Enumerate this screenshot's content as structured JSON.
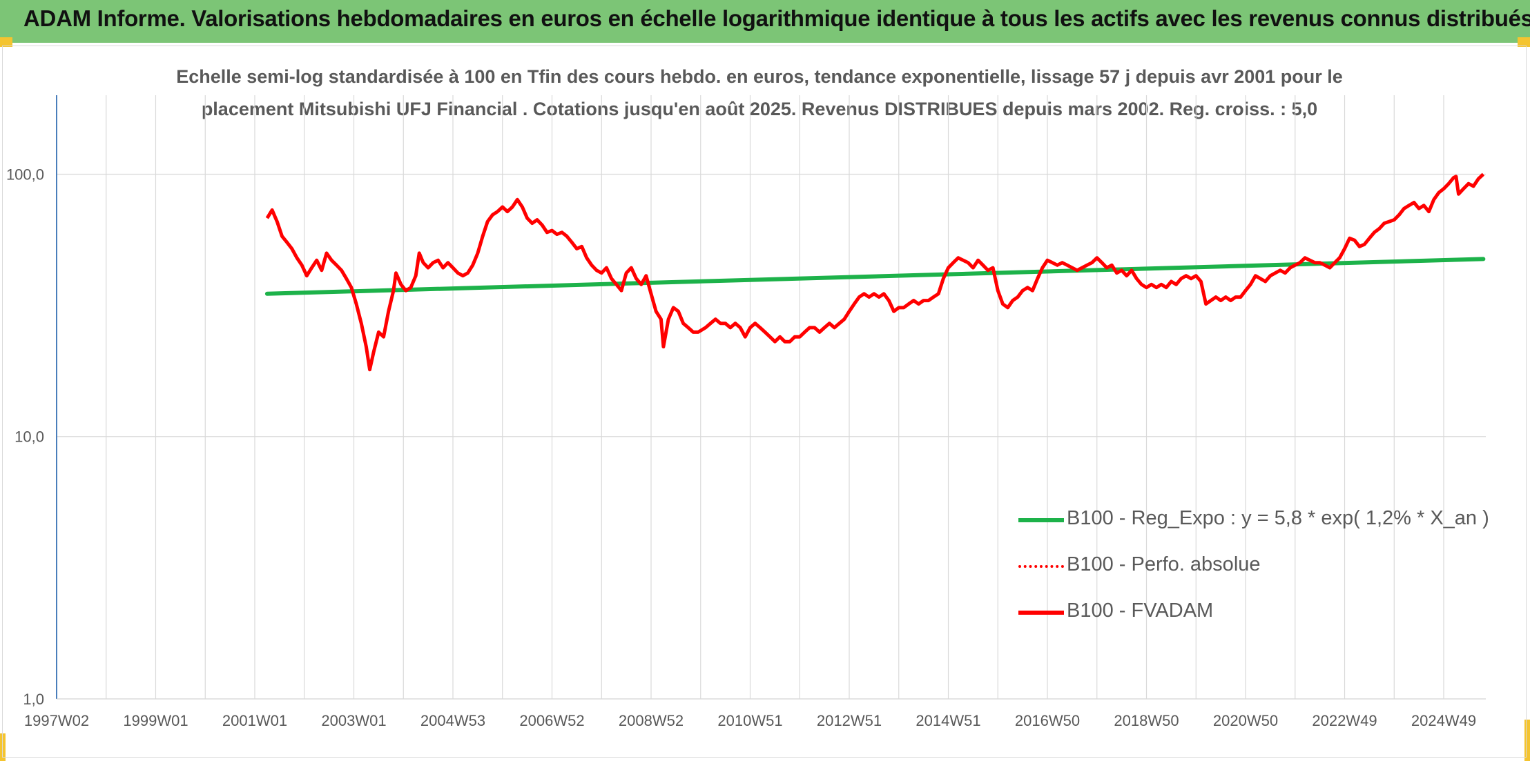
{
  "header": {
    "title": "ADAM Informe. Valorisations hebdomadaires en euros en échelle logarithmique identique à tous les actifs avec les revenus connus distribués"
  },
  "colors": {
    "header_bg": "#7cc576",
    "series_fvadam": "#ff0000",
    "series_regexpo": "#1db24a",
    "series_perfo": "#ff0000",
    "grid": "#d9d9d9",
    "axis": "#4a7ebb",
    "text": "#595959"
  },
  "chart_data": {
    "type": "line",
    "title_line1": "Echelle semi-log standardisée à 100 en Tfin des cours hebdo. en euros, tendance exponentielle, lissage 57 j depuis avr 2001 pour le",
    "title_line2": "placement Mitsubishi UFJ Financial . Cotations jusqu'en août 2025. Revenus DISTRIBUES depuis mars 2002. Reg. croiss. : 5,0",
    "y_scale": "log",
    "ylim": [
      1,
      200
    ],
    "y_ticks": [
      {
        "value": 1,
        "label": "1,0"
      },
      {
        "value": 10,
        "label": "10,0"
      },
      {
        "value": 100,
        "label": "100,0"
      }
    ],
    "xlim": [
      1997.0,
      2025.85
    ],
    "x_ticks": [
      {
        "value": 1997.0,
        "label": "1997W02"
      },
      {
        "value": 1999.0,
        "label": "1999W01"
      },
      {
        "value": 2001.0,
        "label": "2001W01"
      },
      {
        "value": 2003.0,
        "label": "2003W01"
      },
      {
        "value": 2005.0,
        "label": "2004W53"
      },
      {
        "value": 2007.0,
        "label": "2006W52"
      },
      {
        "value": 2009.0,
        "label": "2008W52"
      },
      {
        "value": 2011.0,
        "label": "2010W51"
      },
      {
        "value": 2013.0,
        "label": "2012W51"
      },
      {
        "value": 2015.0,
        "label": "2014W51"
      },
      {
        "value": 2017.0,
        "label": "2016W50"
      },
      {
        "value": 2019.0,
        "label": "2018W50"
      },
      {
        "value": 2021.0,
        "label": "2020W50"
      },
      {
        "value": 2023.0,
        "label": "2022W49"
      },
      {
        "value": 2025.0,
        "label": "2024W49"
      }
    ],
    "grid": true,
    "legend_position": "bottom-right",
    "series": [
      {
        "name": "B100 - Reg_Expo : y = 5,8 * exp( 1,2% *  X_an )",
        "style": "solid",
        "points": [
          [
            2001.25,
            35.0
          ],
          [
            2025.8,
            47.5
          ]
        ]
      },
      {
        "name": "B100 - Perfo. absolue",
        "style": "dotted",
        "points": []
      },
      {
        "name": "B100 - FVADAM",
        "style": "solid",
        "points": [
          [
            2001.25,
            68
          ],
          [
            2001.35,
            73
          ],
          [
            2001.45,
            66
          ],
          [
            2001.55,
            58
          ],
          [
            2001.65,
            55
          ],
          [
            2001.75,
            52
          ],
          [
            2001.85,
            48
          ],
          [
            2001.95,
            45
          ],
          [
            2002.05,
            41
          ],
          [
            2002.15,
            44
          ],
          [
            2002.25,
            47
          ],
          [
            2002.35,
            43
          ],
          [
            2002.45,
            50
          ],
          [
            2002.55,
            47
          ],
          [
            2002.65,
            45
          ],
          [
            2002.75,
            43
          ],
          [
            2002.85,
            40
          ],
          [
            2002.95,
            37
          ],
          [
            2003.05,
            32
          ],
          [
            2003.15,
            27
          ],
          [
            2003.25,
            22
          ],
          [
            2003.32,
            18
          ],
          [
            2003.4,
            21
          ],
          [
            2003.5,
            25
          ],
          [
            2003.6,
            24
          ],
          [
            2003.7,
            30
          ],
          [
            2003.8,
            36
          ],
          [
            2003.85,
            42
          ],
          [
            2003.95,
            38
          ],
          [
            2004.05,
            36
          ],
          [
            2004.15,
            37
          ],
          [
            2004.25,
            41
          ],
          [
            2004.32,
            50
          ],
          [
            2004.4,
            46
          ],
          [
            2004.5,
            44
          ],
          [
            2004.6,
            46
          ],
          [
            2004.7,
            47
          ],
          [
            2004.8,
            44
          ],
          [
            2004.9,
            46
          ],
          [
            2005.0,
            44
          ],
          [
            2005.1,
            42
          ],
          [
            2005.2,
            41
          ],
          [
            2005.3,
            42
          ],
          [
            2005.4,
            45
          ],
          [
            2005.5,
            50
          ],
          [
            2005.6,
            58
          ],
          [
            2005.7,
            66
          ],
          [
            2005.8,
            70
          ],
          [
            2005.9,
            72
          ],
          [
            2006.0,
            75
          ],
          [
            2006.1,
            72
          ],
          [
            2006.2,
            75
          ],
          [
            2006.3,
            80
          ],
          [
            2006.4,
            75
          ],
          [
            2006.5,
            68
          ],
          [
            2006.6,
            65
          ],
          [
            2006.7,
            67
          ],
          [
            2006.8,
            64
          ],
          [
            2006.9,
            60
          ],
          [
            2007.0,
            61
          ],
          [
            2007.1,
            59
          ],
          [
            2007.2,
            60
          ],
          [
            2007.3,
            58
          ],
          [
            2007.4,
            55
          ],
          [
            2007.5,
            52
          ],
          [
            2007.6,
            53
          ],
          [
            2007.7,
            48
          ],
          [
            2007.8,
            45
          ],
          [
            2007.9,
            43
          ],
          [
            2008.0,
            42
          ],
          [
            2008.1,
            44
          ],
          [
            2008.2,
            40
          ],
          [
            2008.3,
            38
          ],
          [
            2008.4,
            36
          ],
          [
            2008.5,
            42
          ],
          [
            2008.6,
            44
          ],
          [
            2008.7,
            40
          ],
          [
            2008.8,
            38
          ],
          [
            2008.9,
            41
          ],
          [
            2009.0,
            35
          ],
          [
            2009.1,
            30
          ],
          [
            2009.2,
            28
          ],
          [
            2009.25,
            22
          ],
          [
            2009.35,
            28
          ],
          [
            2009.45,
            31
          ],
          [
            2009.55,
            30
          ],
          [
            2009.65,
            27
          ],
          [
            2009.75,
            26
          ],
          [
            2009.85,
            25
          ],
          [
            2009.95,
            25
          ],
          [
            2010.1,
            26
          ],
          [
            2010.2,
            27
          ],
          [
            2010.3,
            28
          ],
          [
            2010.4,
            27
          ],
          [
            2010.5,
            27
          ],
          [
            2010.6,
            26
          ],
          [
            2010.7,
            27
          ],
          [
            2010.8,
            26
          ],
          [
            2010.9,
            24
          ],
          [
            2011.0,
            26
          ],
          [
            2011.1,
            27
          ],
          [
            2011.2,
            26
          ],
          [
            2011.3,
            25
          ],
          [
            2011.4,
            24
          ],
          [
            2011.5,
            23
          ],
          [
            2011.6,
            24
          ],
          [
            2011.7,
            23
          ],
          [
            2011.8,
            23
          ],
          [
            2011.9,
            24
          ],
          [
            2012.0,
            24
          ],
          [
            2012.1,
            25
          ],
          [
            2012.2,
            26
          ],
          [
            2012.3,
            26
          ],
          [
            2012.4,
            25
          ],
          [
            2012.5,
            26
          ],
          [
            2012.6,
            27
          ],
          [
            2012.7,
            26
          ],
          [
            2012.8,
            27
          ],
          [
            2012.9,
            28
          ],
          [
            2013.0,
            30
          ],
          [
            2013.1,
            32
          ],
          [
            2013.2,
            34
          ],
          [
            2013.3,
            35
          ],
          [
            2013.4,
            34
          ],
          [
            2013.5,
            35
          ],
          [
            2013.6,
            34
          ],
          [
            2013.7,
            35
          ],
          [
            2013.8,
            33
          ],
          [
            2013.9,
            30
          ],
          [
            2014.0,
            31
          ],
          [
            2014.1,
            31
          ],
          [
            2014.2,
            32
          ],
          [
            2014.3,
            33
          ],
          [
            2014.4,
            32
          ],
          [
            2014.5,
            33
          ],
          [
            2014.6,
            33
          ],
          [
            2014.7,
            34
          ],
          [
            2014.8,
            35
          ],
          [
            2014.9,
            40
          ],
          [
            2015.0,
            44
          ],
          [
            2015.1,
            46
          ],
          [
            2015.2,
            48
          ],
          [
            2015.3,
            47
          ],
          [
            2015.4,
            46
          ],
          [
            2015.5,
            44
          ],
          [
            2015.6,
            47
          ],
          [
            2015.7,
            45
          ],
          [
            2015.8,
            43
          ],
          [
            2015.9,
            44
          ],
          [
            2016.0,
            36
          ],
          [
            2016.1,
            32
          ],
          [
            2016.2,
            31
          ],
          [
            2016.3,
            33
          ],
          [
            2016.4,
            34
          ],
          [
            2016.5,
            36
          ],
          [
            2016.6,
            37
          ],
          [
            2016.7,
            36
          ],
          [
            2016.8,
            40
          ],
          [
            2016.9,
            44
          ],
          [
            2017.0,
            47
          ],
          [
            2017.1,
            46
          ],
          [
            2017.2,
            45
          ],
          [
            2017.3,
            46
          ],
          [
            2017.4,
            45
          ],
          [
            2017.5,
            44
          ],
          [
            2017.6,
            43
          ],
          [
            2017.7,
            44
          ],
          [
            2017.8,
            45
          ],
          [
            2017.9,
            46
          ],
          [
            2018.0,
            48
          ],
          [
            2018.1,
            46
          ],
          [
            2018.2,
            44
          ],
          [
            2018.3,
            45
          ],
          [
            2018.4,
            42
          ],
          [
            2018.5,
            43
          ],
          [
            2018.6,
            41
          ],
          [
            2018.7,
            43
          ],
          [
            2018.8,
            40
          ],
          [
            2018.9,
            38
          ],
          [
            2019.0,
            37
          ],
          [
            2019.1,
            38
          ],
          [
            2019.2,
            37
          ],
          [
            2019.3,
            38
          ],
          [
            2019.4,
            37
          ],
          [
            2019.5,
            39
          ],
          [
            2019.6,
            38
          ],
          [
            2019.7,
            40
          ],
          [
            2019.8,
            41
          ],
          [
            2019.9,
            40
          ],
          [
            2020.0,
            41
          ],
          [
            2020.1,
            39
          ],
          [
            2020.2,
            32
          ],
          [
            2020.3,
            33
          ],
          [
            2020.4,
            34
          ],
          [
            2020.5,
            33
          ],
          [
            2020.6,
            34
          ],
          [
            2020.7,
            33
          ],
          [
            2020.8,
            34
          ],
          [
            2020.9,
            34
          ],
          [
            2021.0,
            36
          ],
          [
            2021.1,
            38
          ],
          [
            2021.2,
            41
          ],
          [
            2021.3,
            40
          ],
          [
            2021.4,
            39
          ],
          [
            2021.5,
            41
          ],
          [
            2021.6,
            42
          ],
          [
            2021.7,
            43
          ],
          [
            2021.8,
            42
          ],
          [
            2021.9,
            44
          ],
          [
            2022.0,
            45
          ],
          [
            2022.1,
            46
          ],
          [
            2022.2,
            48
          ],
          [
            2022.3,
            47
          ],
          [
            2022.4,
            46
          ],
          [
            2022.5,
            46
          ],
          [
            2022.6,
            45
          ],
          [
            2022.7,
            44
          ],
          [
            2022.8,
            46
          ],
          [
            2022.9,
            48
          ],
          [
            2023.0,
            52
          ],
          [
            2023.1,
            57
          ],
          [
            2023.2,
            56
          ],
          [
            2023.3,
            53
          ],
          [
            2023.4,
            54
          ],
          [
            2023.5,
            57
          ],
          [
            2023.6,
            60
          ],
          [
            2023.7,
            62
          ],
          [
            2023.8,
            65
          ],
          [
            2023.9,
            66
          ],
          [
            2024.0,
            67
          ],
          [
            2024.1,
            70
          ],
          [
            2024.2,
            74
          ],
          [
            2024.3,
            76
          ],
          [
            2024.4,
            78
          ],
          [
            2024.5,
            74
          ],
          [
            2024.6,
            76
          ],
          [
            2024.7,
            72
          ],
          [
            2024.8,
            80
          ],
          [
            2024.9,
            85
          ],
          [
            2025.0,
            88
          ],
          [
            2025.1,
            92
          ],
          [
            2025.2,
            97
          ],
          [
            2025.25,
            98
          ],
          [
            2025.3,
            84
          ],
          [
            2025.4,
            88
          ],
          [
            2025.5,
            92
          ],
          [
            2025.6,
            90
          ],
          [
            2025.7,
            96
          ],
          [
            2025.8,
            100
          ]
        ]
      }
    ]
  }
}
